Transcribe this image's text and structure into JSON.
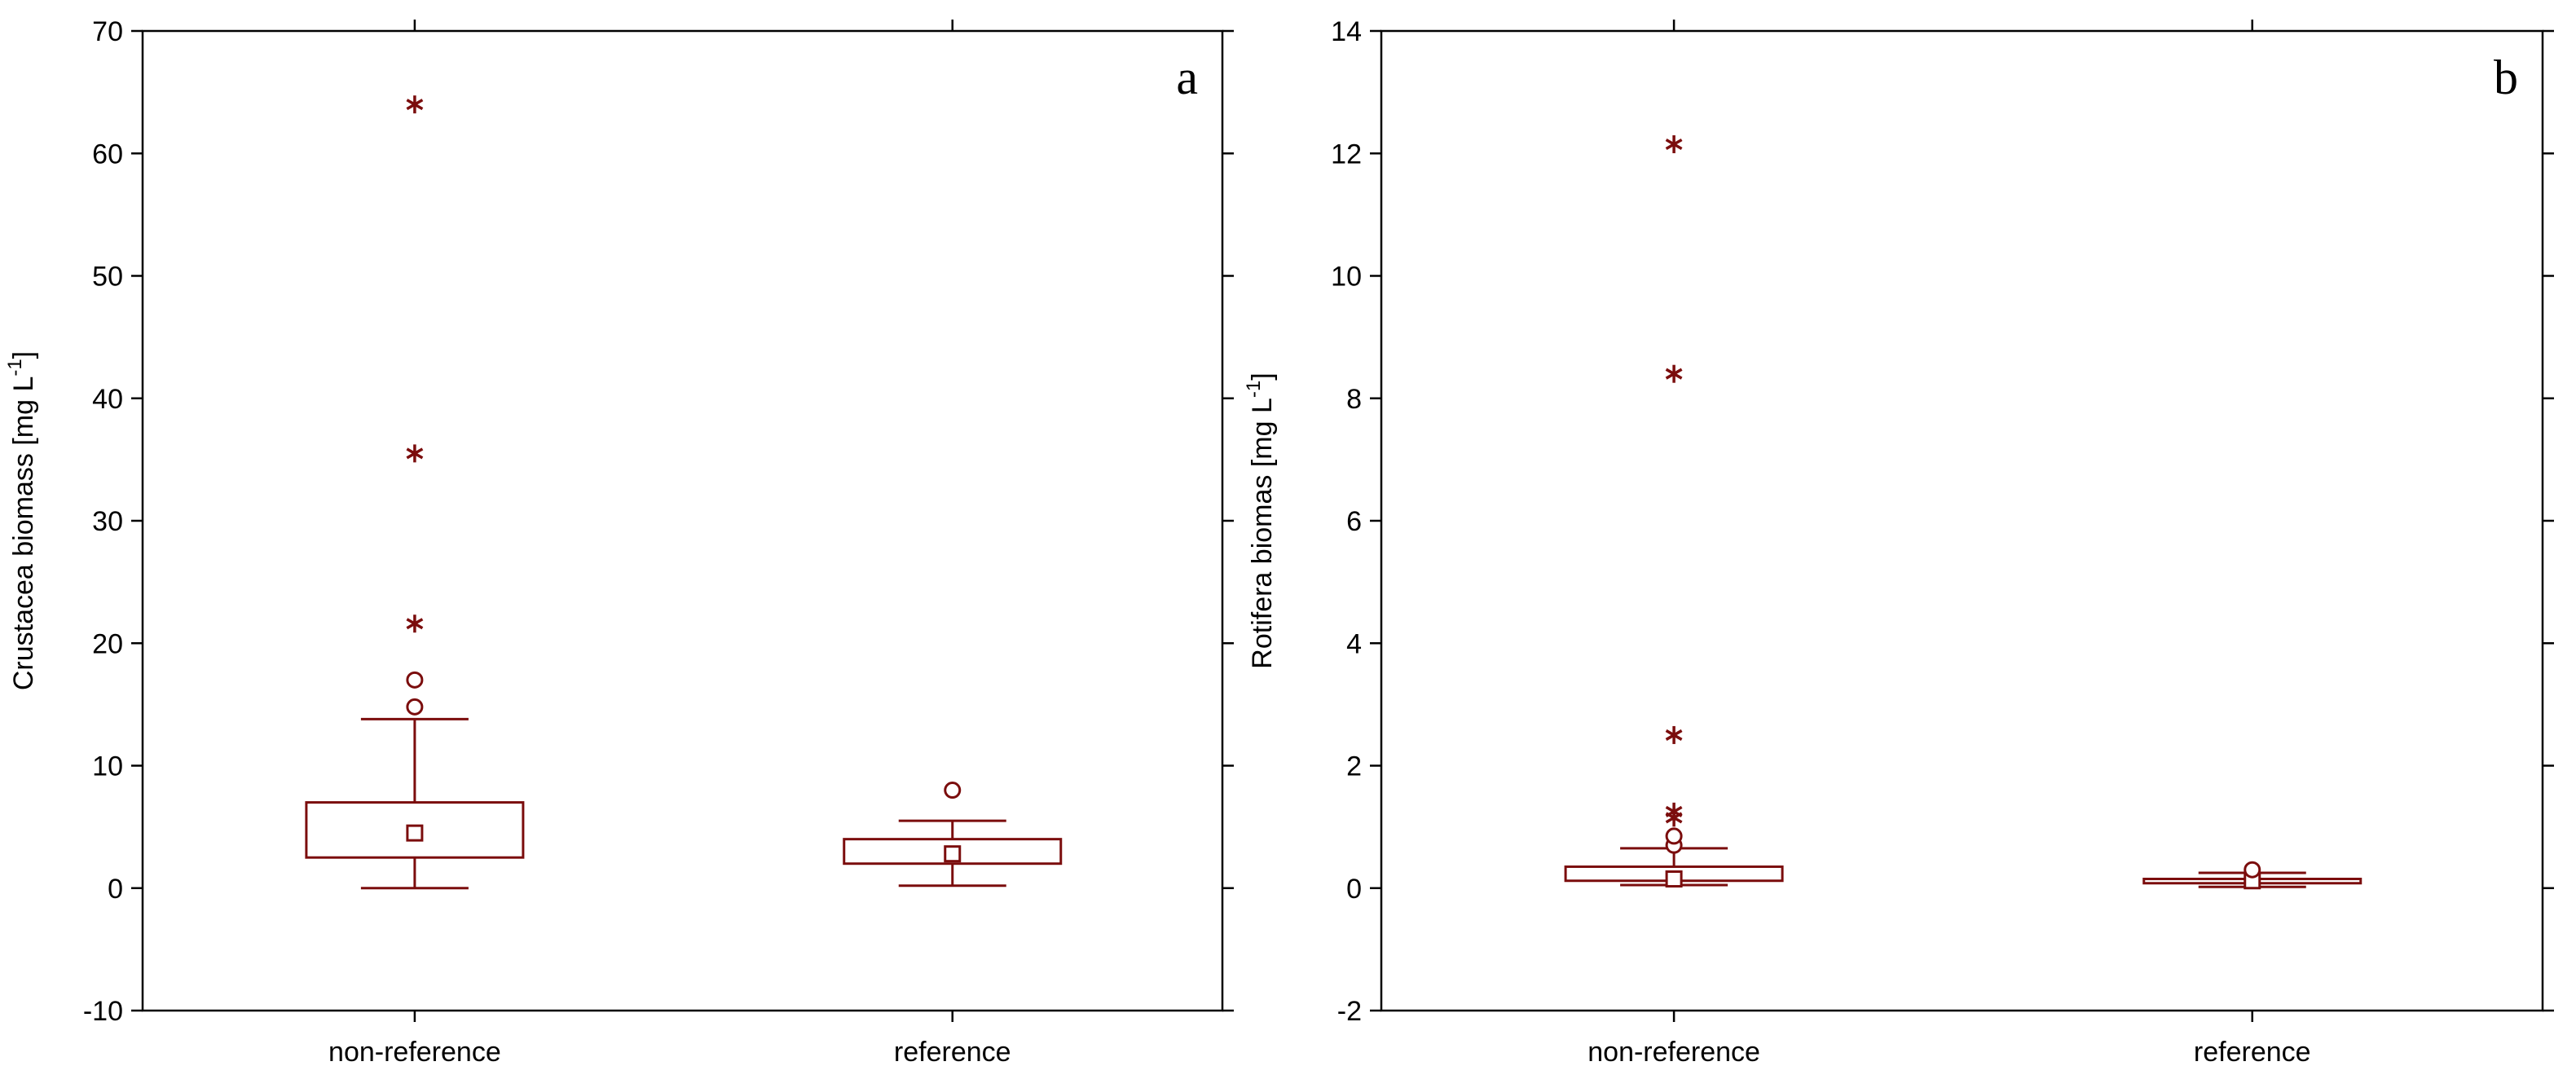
{
  "chart_data": [
    {
      "type": "box",
      "panel_label": "a",
      "ylabel_main": "Crustacea biomass [mg L",
      "ylabel_sup": "-1",
      "ylabel_end": "]",
      "ylim": [
        -10,
        70
      ],
      "yticks": [
        -10,
        0,
        10,
        20,
        30,
        40,
        50,
        60,
        70
      ],
      "yticks_text": [
        "-10",
        "0",
        "10",
        "20",
        "30",
        "40",
        "50",
        "60",
        "70"
      ],
      "categories": [
        "non-reference",
        "reference"
      ],
      "color": "#7b0d0d",
      "boxes": [
        {
          "category": "non-reference",
          "median": 4.5,
          "q1": 2.5,
          "q3": 7.0,
          "whisker_low": 0.0,
          "whisker_high": 13.8,
          "outliers": [
            14.8,
            17.0
          ],
          "extremes": [
            21.6,
            35.5,
            64.0
          ]
        },
        {
          "category": "reference",
          "median": 2.8,
          "q1": 2.0,
          "q3": 4.0,
          "whisker_low": 0.2,
          "whisker_high": 5.5,
          "outliers": [
            8.0
          ],
          "extremes": []
        }
      ]
    },
    {
      "type": "box",
      "panel_label": "b",
      "ylabel_main": "Rotifera biomas [mg L",
      "ylabel_sup": "-1",
      "ylabel_end": "]",
      "ylim": [
        -2,
        14
      ],
      "yticks": [
        -2,
        0,
        2,
        4,
        6,
        8,
        10,
        12,
        14
      ],
      "yticks_text": [
        "-2",
        "0",
        "2",
        "4",
        "6",
        "8",
        "10",
        "12",
        "14"
      ],
      "categories": [
        "non-reference",
        "reference"
      ],
      "color": "#7b0d0d",
      "boxes": [
        {
          "category": "non-reference",
          "median": 0.15,
          "q1": 0.12,
          "q3": 0.35,
          "whisker_low": 0.05,
          "whisker_high": 0.65,
          "outliers": [
            0.7,
            0.85
          ],
          "extremes": [
            1.15,
            1.25,
            2.5,
            8.4,
            12.15
          ]
        },
        {
          "category": "reference",
          "median": 0.12,
          "q1": 0.08,
          "q3": 0.15,
          "whisker_low": 0.02,
          "whisker_high": 0.25,
          "outliers": [
            0.3
          ],
          "extremes": []
        }
      ]
    }
  ]
}
